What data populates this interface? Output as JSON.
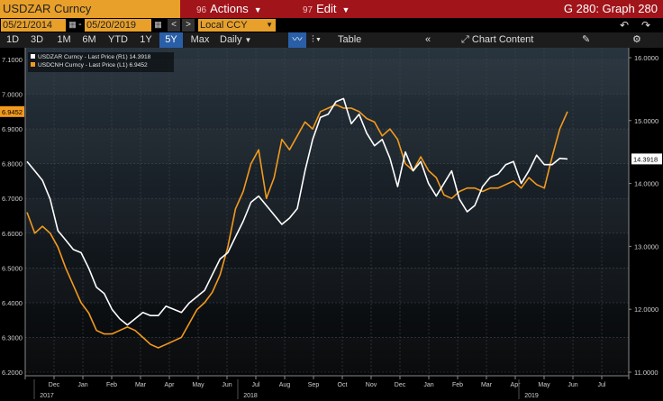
{
  "header": {
    "ticker": "USDZAR Curncy",
    "actions_num": "96",
    "actions_label": "Actions",
    "edit_num": "97",
    "edit_label": "Edit",
    "graph_title": "G 280: Graph 280"
  },
  "controls": {
    "start_date": "05/21/2014",
    "end_date": "05/20/2019",
    "currency": "Local CCY",
    "periods": [
      "1D",
      "3D",
      "1M",
      "6M",
      "YTD",
      "1Y",
      "5Y",
      "Max"
    ],
    "active_period": "5Y",
    "frequency": "Daily",
    "table_label": "Table",
    "chart_content_label": "Chart Content"
  },
  "chart_data": {
    "type": "line",
    "legend_position": "top-left",
    "series": [
      {
        "name": "USDZAR Curncy - Last Price (R1) 14.3918",
        "axis": "right",
        "color": "#ffffff",
        "last": "14.3918",
        "values": [
          14.35,
          14.2,
          14.05,
          13.75,
          13.25,
          13.1,
          12.95,
          12.9,
          12.65,
          12.35,
          12.25,
          12.0,
          11.85,
          11.75,
          11.85,
          11.95,
          11.9,
          11.9,
          12.05,
          12.0,
          11.95,
          12.1,
          12.2,
          12.3,
          12.55,
          12.8,
          12.9,
          13.15,
          13.4,
          13.7,
          13.8,
          13.65,
          13.5,
          13.35,
          13.45,
          13.6,
          14.2,
          14.7,
          15.05,
          15.1,
          15.3,
          15.35,
          14.95,
          15.1,
          14.8,
          14.6,
          14.7,
          14.4,
          13.95,
          14.5,
          14.2,
          14.35,
          14.0,
          13.8,
          14.0,
          14.2,
          13.75,
          13.55,
          13.65,
          13.95,
          14.1,
          14.15,
          14.3,
          14.35,
          14.0,
          14.2,
          14.45,
          14.3,
          14.3,
          14.4,
          14.39
        ]
      },
      {
        "name": "USDCNH Curncy - Last Price (L1) 6.9452",
        "axis": "left",
        "color": "#f29a1e",
        "last": "6.9452",
        "values": [
          6.66,
          6.6,
          6.62,
          6.6,
          6.56,
          6.5,
          6.45,
          6.4,
          6.37,
          6.32,
          6.31,
          6.31,
          6.32,
          6.33,
          6.32,
          6.3,
          6.28,
          6.27,
          6.28,
          6.29,
          6.3,
          6.34,
          6.38,
          6.4,
          6.43,
          6.48,
          6.56,
          6.67,
          6.72,
          6.8,
          6.84,
          6.7,
          6.76,
          6.87,
          6.84,
          6.88,
          6.92,
          6.9,
          6.95,
          6.96,
          6.97,
          6.96,
          6.96,
          6.95,
          6.93,
          6.92,
          6.88,
          6.9,
          6.87,
          6.8,
          6.78,
          6.82,
          6.78,
          6.76,
          6.71,
          6.7,
          6.72,
          6.73,
          6.73,
          6.72,
          6.73,
          6.73,
          6.74,
          6.75,
          6.73,
          6.76,
          6.74,
          6.73,
          6.82,
          6.9,
          6.95
        ]
      }
    ],
    "y_left": {
      "min": 6.2,
      "max": 7.1,
      "ticks": [
        "7.1000",
        "7.0000",
        "6.9000",
        "6.8000",
        "6.7000",
        "6.6000",
        "6.5000",
        "6.4000",
        "6.3000",
        "6.2000"
      ]
    },
    "y_right": {
      "min": 11.0,
      "max": 16.0,
      "ticks": [
        "16.0000",
        "15.0000",
        "14.0000",
        "13.0000",
        "12.0000",
        "11.0000"
      ]
    },
    "months": [
      "Dec",
      "Jan",
      "Feb",
      "Mar",
      "Apr",
      "May",
      "Jun",
      "Jul",
      "Aug",
      "Sep",
      "Oct",
      "Nov",
      "Dec",
      "Jan",
      "Feb",
      "Mar",
      "Apr",
      "May",
      "Jun",
      "Jul"
    ],
    "years": [
      "2017",
      "2018",
      "2019"
    ]
  }
}
